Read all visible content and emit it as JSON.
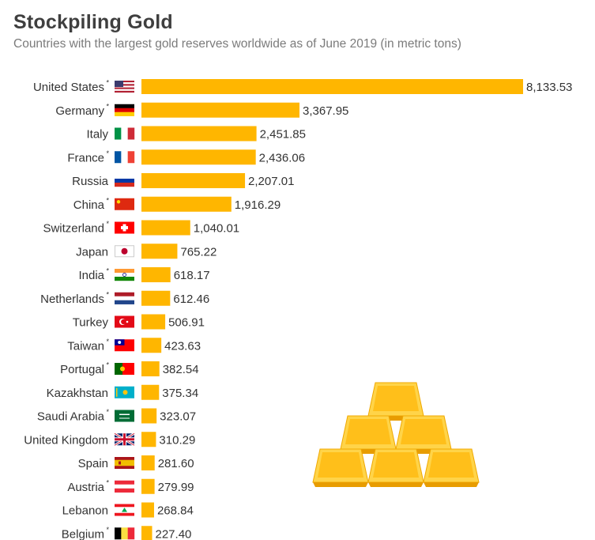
{
  "chart_data": {
    "type": "bar",
    "orientation": "horizontal",
    "title": "Stockpiling Gold",
    "subtitle": "Countries with the largest gold reserves worldwide as of June 2019 (in metric tons)",
    "bar_color": "#FFB600",
    "categories": [
      {
        "name": "United States",
        "asterisk": true,
        "flag": "us-flag-icon",
        "value_label": "8,133.53"
      },
      {
        "name": "Germany",
        "asterisk": true,
        "flag": "germany-flag-icon",
        "value_label": "3,367.95"
      },
      {
        "name": "Italy",
        "asterisk": false,
        "flag": "italy-flag-icon",
        "value_label": "2,451.85"
      },
      {
        "name": "France",
        "asterisk": true,
        "flag": "france-flag-icon",
        "value_label": "2,436.06"
      },
      {
        "name": "Russia",
        "asterisk": false,
        "flag": "russia-flag-icon",
        "value_label": "2,207.01"
      },
      {
        "name": "China",
        "asterisk": true,
        "flag": "china-flag-icon",
        "value_label": "1,916.29"
      },
      {
        "name": "Switzerland",
        "asterisk": true,
        "flag": "switzerland-flag-icon",
        "value_label": "1,040.01"
      },
      {
        "name": "Japan",
        "asterisk": false,
        "flag": "japan-flag-icon",
        "value_label": "765.22"
      },
      {
        "name": "India",
        "asterisk": true,
        "flag": "india-flag-icon",
        "value_label": "618.17"
      },
      {
        "name": "Netherlands",
        "asterisk": true,
        "flag": "netherlands-flag-icon",
        "value_label": "612.46"
      },
      {
        "name": "Turkey",
        "asterisk": false,
        "flag": "turkey-flag-icon",
        "value_label": "506.91"
      },
      {
        "name": "Taiwan",
        "asterisk": true,
        "flag": "taiwan-flag-icon",
        "value_label": "423.63"
      },
      {
        "name": "Portugal",
        "asterisk": true,
        "flag": "portugal-flag-icon",
        "value_label": "382.54"
      },
      {
        "name": "Kazakhstan",
        "asterisk": false,
        "flag": "kazakhstan-flag-icon",
        "value_label": "375.34"
      },
      {
        "name": "Saudi Arabia",
        "asterisk": true,
        "flag": "saudi-arabia-flag-icon",
        "value_label": "323.07"
      },
      {
        "name": "United Kingdom",
        "asterisk": false,
        "flag": "uk-flag-icon",
        "value_label": "310.29"
      },
      {
        "name": "Spain",
        "asterisk": false,
        "flag": "spain-flag-icon",
        "value_label": "281.60"
      },
      {
        "name": "Austria",
        "asterisk": true,
        "flag": "austria-flag-icon",
        "value_label": "279.99"
      },
      {
        "name": "Lebanon",
        "asterisk": false,
        "flag": "lebanon-flag-icon",
        "value_label": "268.84"
      },
      {
        "name": "Belgium",
        "asterisk": true,
        "flag": "belgium-flag-icon",
        "value_label": "227.40"
      }
    ],
    "values": [
      8133.53,
      3367.95,
      2451.85,
      2436.06,
      2207.01,
      1916.29,
      1040.01,
      765.22,
      618.17,
      612.46,
      506.91,
      423.63,
      382.54,
      375.34,
      323.07,
      310.29,
      281.6,
      279.99,
      268.84,
      227.4
    ],
    "xlim": [
      0,
      8133.53
    ],
    "grid": false,
    "legend": "none",
    "illustration": "gold-bars-pyramid-icon"
  }
}
